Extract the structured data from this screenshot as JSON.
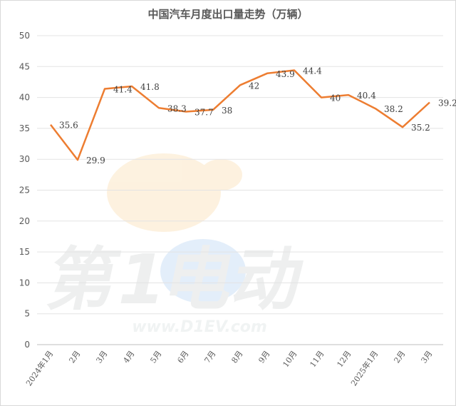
{
  "chart_data": {
    "type": "line",
    "title": "中国汽车月度出口量走势（万辆）",
    "xlabel": "",
    "ylabel": "",
    "categories": [
      "2024年1月",
      "2月",
      "3月",
      "4月",
      "5月",
      "6月",
      "7月",
      "8月",
      "9月",
      "10月",
      "11月",
      "12月",
      "2025年1月",
      "2月",
      "3月"
    ],
    "values": [
      35.6,
      29.9,
      41.4,
      41.8,
      38.3,
      37.7,
      38,
      42,
      43.9,
      44.4,
      40,
      40.4,
      38.2,
      35.2,
      39.2
    ],
    "data_labels": [
      "35.6",
      "29.9",
      "41.4",
      "41.8",
      "38.3",
      "37.7",
      "38",
      "42",
      "43.9",
      "44.4",
      "40",
      "40.4",
      "38.2",
      "35.2",
      "39.2"
    ],
    "yticks": [
      "0",
      "5",
      "10",
      "15",
      "20",
      "25",
      "30",
      "35",
      "40",
      "45",
      "50"
    ],
    "ylim": [
      0,
      50
    ],
    "grid": true,
    "legend": "none",
    "line_color": "#ed7d31"
  },
  "watermark": {
    "brand_text": "第1电动",
    "url_text": "www.D1EV.com"
  }
}
